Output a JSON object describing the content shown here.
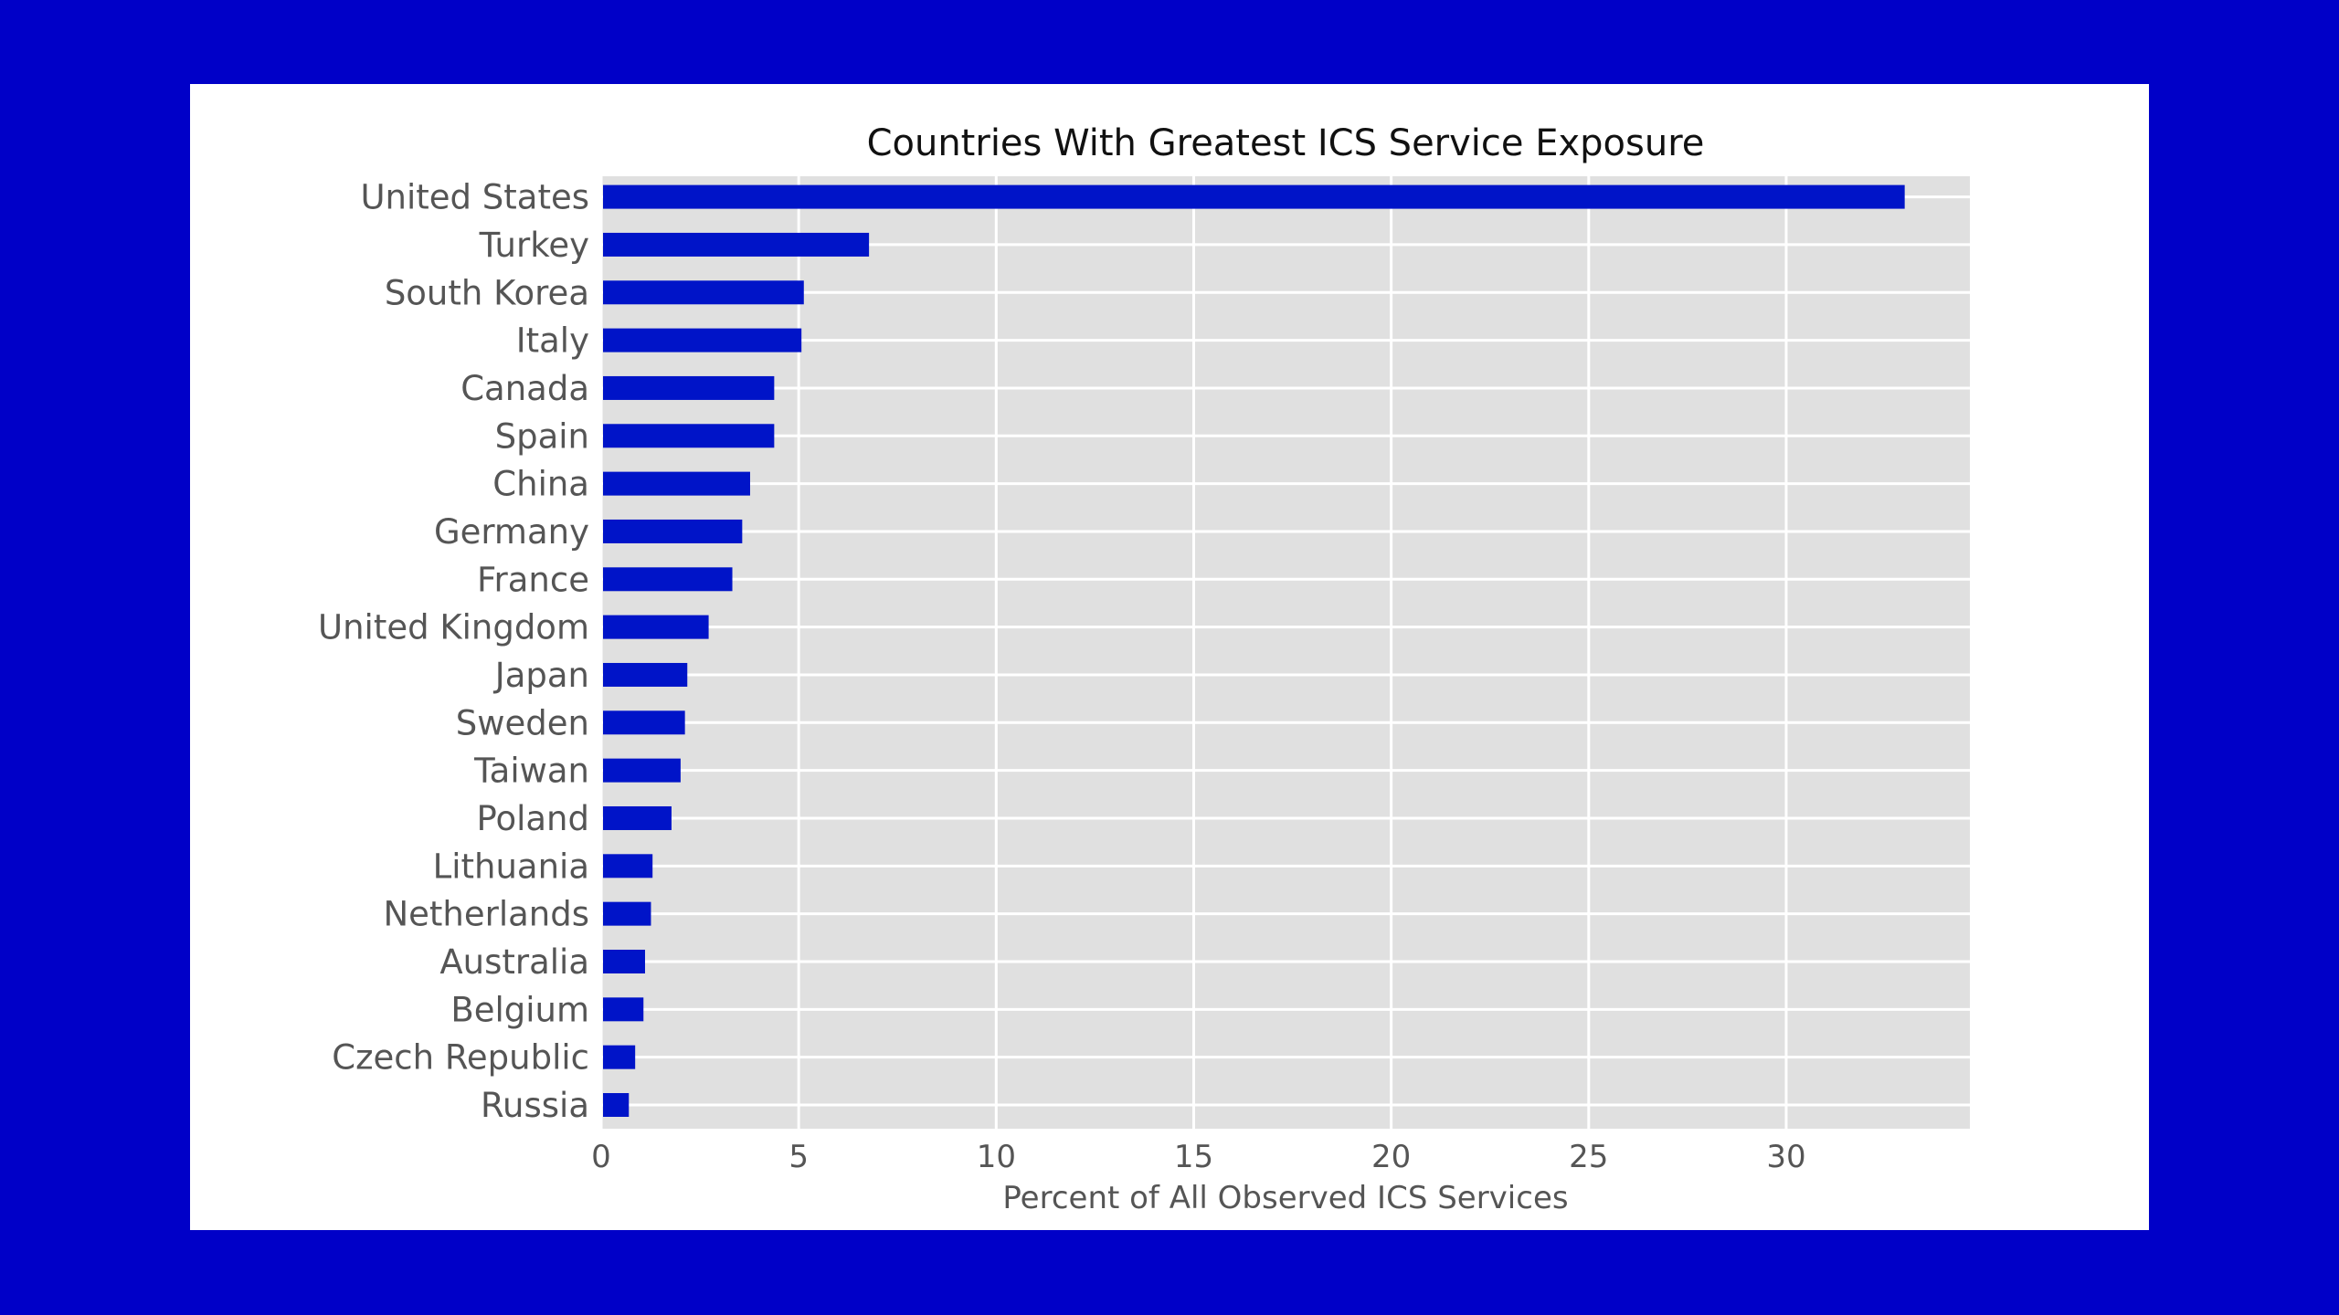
{
  "chart_data": {
    "type": "bar",
    "orientation": "horizontal",
    "title": "Countries With Greatest ICS Service Exposure",
    "xlabel": "Percent of All Observed ICS Services",
    "ylabel": "",
    "categories": [
      "United States",
      "Turkey",
      "South Korea",
      "Italy",
      "Canada",
      "Spain",
      "China",
      "Germany",
      "France",
      "United Kingdom",
      "Japan",
      "Sweden",
      "Taiwan",
      "Poland",
      "Lithuania",
      "Netherlands",
      "Australia",
      "Belgium",
      "Czech Republic",
      "Russia"
    ],
    "values": [
      33.0,
      6.78,
      5.13,
      5.07,
      4.38,
      4.38,
      3.77,
      3.57,
      3.32,
      2.72,
      2.18,
      2.12,
      2.01,
      1.78,
      1.3,
      1.26,
      1.11,
      1.07,
      0.86,
      0.7
    ],
    "xlim": [
      0,
      34.65
    ],
    "xticks": [
      0,
      5,
      10,
      15,
      20,
      25,
      30
    ],
    "xtick_labels": [
      "0",
      "5",
      "10",
      "15",
      "20",
      "25",
      "30"
    ],
    "grid": true,
    "bar_color": "#0014c8",
    "plot_bg": "#e0e0e0"
  }
}
